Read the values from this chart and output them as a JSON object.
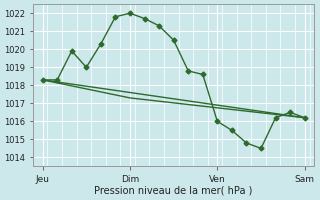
{
  "title": "",
  "xlabel": "Pression niveau de la mer( hPa )",
  "background_color": "#cce8ea",
  "grid_color": "#ffffff",
  "line_color": "#2d6a2d",
  "ylim": [
    1013.5,
    1022.5
  ],
  "yticks": [
    1014,
    1015,
    1016,
    1017,
    1018,
    1019,
    1020,
    1021,
    1022
  ],
  "x_tick_positions": [
    4,
    40,
    76,
    112
  ],
  "x_tick_labels": [
    "Jeu",
    "Dim",
    "Ven",
    "Sam"
  ],
  "xlim": [
    0,
    116
  ],
  "line1_x": [
    4,
    10,
    16,
    22,
    28,
    34,
    40,
    46,
    52,
    58,
    64,
    70,
    76,
    82,
    88,
    94,
    100,
    106,
    112
  ],
  "line1_y": [
    1018.3,
    1018.3,
    1019.9,
    1019.0,
    1020.3,
    1021.8,
    1022.0,
    1021.7,
    1021.3,
    1020.5,
    1018.8,
    1018.6,
    1016.0,
    1015.5,
    1014.8,
    1014.5,
    1016.2,
    1016.5,
    1016.2
  ],
  "line2_x": [
    4,
    40,
    112
  ],
  "line2_y": [
    1018.3,
    1017.6,
    1016.2
  ],
  "line3_x": [
    4,
    40,
    112
  ],
  "line3_y": [
    1018.3,
    1017.3,
    1016.2
  ],
  "marker_size": 2.5,
  "line_width": 1.0
}
